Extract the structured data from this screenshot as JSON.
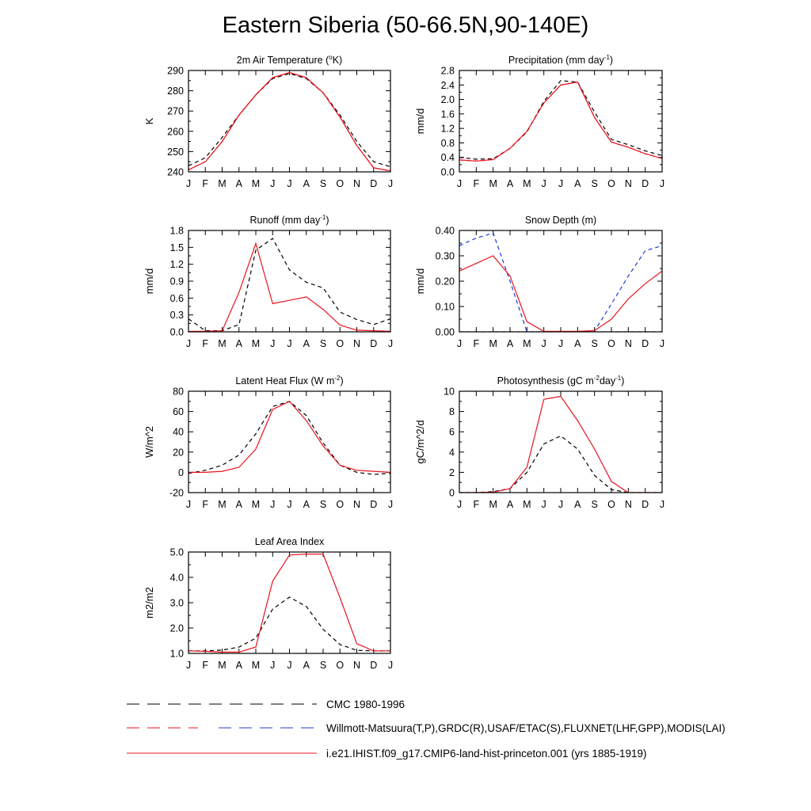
{
  "title": "Eastern Siberia (50-66.5N,90-140E)",
  "months": [
    "J",
    "F",
    "M",
    "A",
    "M",
    "J",
    "J",
    "A",
    "S",
    "O",
    "N",
    "D",
    "J"
  ],
  "styles": {
    "obs_color": "#000000",
    "obs_alt_color": "#1e3cd2",
    "model_color": "#e8141e"
  },
  "legend": [
    {
      "label": "CMC 1980-1996",
      "style": "dash-black"
    },
    {
      "label": "Willmott-Matsuura(T,P),GRDC(R),USAF/ETAC(S),FLUXNET(LHF,GPP),MODIS(LAI)",
      "style": "dash-red-blue"
    },
    {
      "label": "i.e21.IHIST.f09_g17.CMIP6-land-hist-princeton.001 (yrs 1885-1919)",
      "style": "solid-red"
    }
  ],
  "chart_data": [
    {
      "id": "temperature",
      "type": "line",
      "title": "2m Air Temperature (",
      "title_sup": "o",
      "title_tail": "K)",
      "ylabel": "K",
      "ylim": [
        240,
        290
      ],
      "yticks": [
        "240",
        "250",
        "260",
        "270",
        "280",
        "290"
      ],
      "ytick_values": [
        240,
        250,
        260,
        270,
        280,
        290
      ],
      "series": [
        {
          "name": "CMC 1980-1996",
          "style": "dash",
          "color": "#000000",
          "values": [
            243,
            247,
            257,
            268,
            278,
            286,
            288.5,
            286,
            279,
            268,
            255,
            245,
            242.5
          ]
        },
        {
          "name": "Willmott-Matsuura(T,P),GRDC(R),USAF/ETAC(S),FLUXNET(LHF,GPP),MODIS(LAI)",
          "style": "dash",
          "color": "#e8141e",
          "values": [
            241,
            245,
            255,
            268,
            278,
            286.5,
            289,
            286.5,
            279,
            267,
            253,
            242,
            240.5
          ]
        },
        {
          "name": "i.e21.IHIST.f09_g17.CMIP6-land-hist-princeton.001 (yrs 1885-1919)",
          "style": "solid",
          "color": "#e8141e",
          "values": [
            241,
            245,
            255,
            268,
            278,
            286.5,
            289,
            286.5,
            279,
            267,
            253,
            242,
            240.5
          ]
        }
      ]
    },
    {
      "id": "precipitation",
      "type": "line",
      "title": "Precipitation (mm day",
      "title_sup": "-1",
      "title_tail": ")",
      "ylabel": "mm/d",
      "ylim": [
        0,
        2.8
      ],
      "yticks": [
        "0.0",
        "0.4",
        "0.8",
        "1.2",
        "1.6",
        "2.0",
        "2.4",
        "2.8"
      ],
      "ytick_values": [
        0,
        0.4,
        0.8,
        1.2,
        1.6,
        2.0,
        2.4,
        2.8
      ],
      "series": [
        {
          "name": "CMC 1980-1996",
          "style": "dash",
          "color": "#000000",
          "values": [
            0.4,
            0.35,
            0.36,
            0.65,
            1.1,
            1.95,
            2.52,
            2.48,
            1.65,
            0.9,
            0.75,
            0.58,
            0.45
          ]
        },
        {
          "name": "Willmott-Matsuura(T,P),GRDC(R),USAF/ETAC(S),FLUXNET(LHF,GPP),MODIS(LAI)",
          "style": "dash",
          "color": "#e8141e",
          "values": [
            0.33,
            0.3,
            0.34,
            0.65,
            1.12,
            1.9,
            2.4,
            2.48,
            1.5,
            0.82,
            0.68,
            0.5,
            0.37
          ]
        },
        {
          "name": "i.e21.IHIST.f09_g17.CMIP6-land-hist-princeton.001 (yrs 1885-1919)",
          "style": "solid",
          "color": "#e8141e",
          "values": [
            0.33,
            0.3,
            0.34,
            0.65,
            1.12,
            1.9,
            2.4,
            2.48,
            1.5,
            0.82,
            0.68,
            0.5,
            0.37
          ]
        }
      ]
    },
    {
      "id": "runoff",
      "type": "line",
      "title": "Runoff (mm day",
      "title_sup": "-1",
      "title_tail": ")",
      "ylabel": "mm/d",
      "ylim": [
        0,
        1.8
      ],
      "yticks": [
        "0.0",
        "0.3",
        "0.6",
        "0.9",
        "1.2",
        "1.5",
        "1.8"
      ],
      "ytick_values": [
        0,
        0.3,
        0.6,
        0.9,
        1.2,
        1.5,
        1.8
      ],
      "series": [
        {
          "name": "Willmott-Matsuura(T,P),GRDC(R),USAF/ETAC(S),FLUXNET(LHF,GPP),MODIS(LAI)",
          "style": "dash",
          "color": "#000000",
          "values": [
            0.23,
            0.02,
            0.02,
            0.13,
            1.45,
            1.66,
            1.1,
            0.88,
            0.78,
            0.35,
            0.22,
            0.13,
            0.23
          ]
        },
        {
          "name": "i.e21.IHIST.f09_g17.CMIP6-land-hist-princeton.001 (yrs 1885-1919)",
          "style": "solid",
          "color": "#e8141e",
          "values": [
            0.01,
            0.01,
            0.02,
            0.7,
            1.57,
            0.5,
            0.56,
            0.62,
            0.4,
            0.12,
            0.03,
            0.02,
            0.01
          ]
        }
      ]
    },
    {
      "id": "snow_depth",
      "type": "line",
      "title": "Snow Depth (m)",
      "title_sup": "",
      "title_tail": "",
      "ylabel": "mm/d",
      "ylim": [
        0,
        0.4
      ],
      "yticks": [
        "0.00",
        "0.10",
        "0.20",
        "0.30",
        "0.40"
      ],
      "ytick_values": [
        0,
        0.1,
        0.2,
        0.3,
        0.4
      ],
      "series": [
        {
          "name": "CMC 1980-1996",
          "style": "dash",
          "color": "#000000",
          "values": [
            0,
            0,
            0,
            0,
            0,
            0,
            0,
            0,
            0,
            0,
            0,
            0,
            0
          ]
        },
        {
          "name": "Willmott-Matsuura(T,P),GRDC(R),USAF/ETAC(S),FLUXNET(LHF,GPP),MODIS(LAI)",
          "style": "dash",
          "color": "#1e3cd2",
          "values": [
            0.34,
            0.37,
            0.39,
            0.2,
            0.0,
            0.0,
            0.0,
            0.0,
            0.003,
            0.11,
            0.22,
            0.32,
            0.34
          ]
        },
        {
          "name": "i.e21.IHIST.f09_g17.CMIP6-land-hist-princeton.001 (yrs 1885-1919)",
          "style": "solid",
          "color": "#e8141e",
          "values": [
            0.24,
            0.27,
            0.3,
            0.22,
            0.04,
            0.002,
            0.002,
            0.002,
            0.005,
            0.05,
            0.13,
            0.19,
            0.24
          ]
        }
      ]
    },
    {
      "id": "latent_heat",
      "type": "line",
      "title": "Latent Heat Flux (W m",
      "title_sup": "-2",
      "title_tail": ")",
      "ylabel": "W/m^2",
      "ylim": [
        -20,
        80
      ],
      "yticks": [
        "-20",
        "0",
        "20",
        "40",
        "60",
        "80"
      ],
      "ytick_values": [
        -20,
        0,
        20,
        40,
        60,
        80
      ],
      "series": [
        {
          "name": "Willmott-Matsuura(T,P),GRDC(R),USAF/ETAC(S),FLUXNET(LHF,GPP),MODIS(LAI)",
          "style": "dash",
          "color": "#000000",
          "values": [
            -1,
            2,
            7,
            17,
            38,
            65,
            70,
            56,
            29,
            7,
            0,
            -2,
            -1
          ]
        },
        {
          "name": "i.e21.IHIST.f09_g17.CMIP6-land-hist-princeton.001 (yrs 1885-1919)",
          "style": "solid",
          "color": "#e8141e",
          "values": [
            0,
            0,
            1,
            5,
            23,
            62,
            70,
            51,
            26,
            7,
            2,
            1,
            0
          ]
        }
      ]
    },
    {
      "id": "photosynthesis",
      "type": "line",
      "title": "Photosynthesis (gC m",
      "title_sup": "-2",
      "title_tail": "day",
      "title_sup2": "-1",
      "title_tail2": ")",
      "ylabel": "gC/m^2/d",
      "ylim": [
        0,
        10
      ],
      "yticks": [
        "0",
        "2",
        "4",
        "6",
        "8",
        "10"
      ],
      "ytick_values": [
        0,
        2,
        4,
        6,
        8,
        10
      ],
      "series": [
        {
          "name": "Willmott-Matsuura(T,P),GRDC(R),USAF/ETAC(S),FLUXNET(LHF,GPP),MODIS(LAI)",
          "style": "dash",
          "color": "#000000",
          "values": [
            0,
            0,
            0.1,
            0.4,
            2.0,
            4.8,
            5.6,
            4.3,
            1.7,
            0.3,
            0,
            0,
            0
          ]
        },
        {
          "name": "i.e21.IHIST.f09_g17.CMIP6-land-hist-princeton.001 (yrs 1885-1919)",
          "style": "solid",
          "color": "#e8141e",
          "values": [
            0,
            0,
            0.05,
            0.4,
            2.5,
            9.2,
            9.5,
            7.1,
            4.3,
            1.1,
            0,
            0,
            0
          ]
        }
      ]
    },
    {
      "id": "lai",
      "type": "line",
      "title": "Leaf Area Index",
      "title_sup": "",
      "title_tail": "",
      "ylabel": "m2/m2",
      "ylim": [
        1.0,
        5.0
      ],
      "yticks": [
        "1.0",
        "2.0",
        "3.0",
        "4.0",
        "5.0"
      ],
      "ytick_values": [
        1,
        2,
        3,
        4,
        5
      ],
      "series": [
        {
          "name": "Willmott-Matsuura(T,P),GRDC(R),USAF/ETAC(S),FLUXNET(LHF,GPP),MODIS(LAI)",
          "style": "dash",
          "color": "#000000",
          "values": [
            1.1,
            1.1,
            1.13,
            1.25,
            1.6,
            2.75,
            3.22,
            2.85,
            1.95,
            1.35,
            1.12,
            1.1,
            1.1
          ]
        },
        {
          "name": "i.e21.IHIST.f09_g17.CMIP6-land-hist-princeton.001 (yrs 1885-1919)",
          "style": "solid",
          "color": "#e8141e",
          "values": [
            1.1,
            1.08,
            1.05,
            1.05,
            1.25,
            3.85,
            4.88,
            4.92,
            4.92,
            3.2,
            1.38,
            1.1,
            1.1
          ]
        }
      ]
    }
  ]
}
